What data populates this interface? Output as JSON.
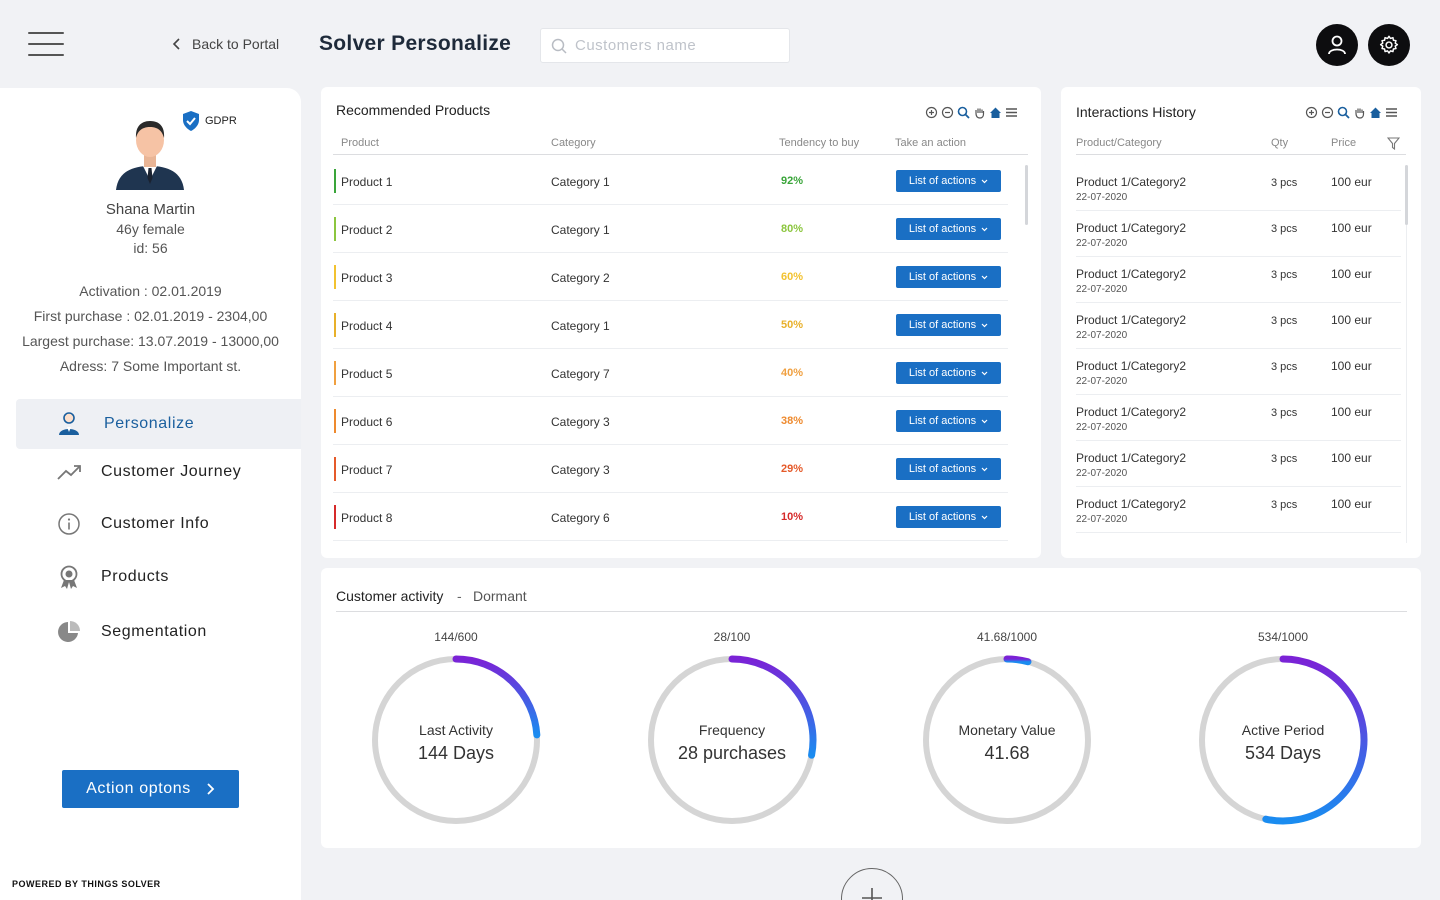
{
  "header": {
    "back_label": "Back to Portal",
    "app_title": "Solver Personalize",
    "search_placeholder": "Customers name"
  },
  "profile": {
    "gdpr_label": "GDPR",
    "name": "Shana Martin",
    "age_gender": "46y female",
    "id_text": "id: 56",
    "activation": "Activation : 02.01.2019",
    "first_purchase": "First purchase : 02.01.2019 -  2304,00",
    "largest_purchase": "Largest purchase: 13.07.2019 - 13000,00",
    "address": "Adress: 7 Some Important  st."
  },
  "nav": {
    "items": [
      {
        "label": "Personalize",
        "icon": "person-icon",
        "active": true
      },
      {
        "label": "Customer Journey",
        "icon": "trending-up-icon"
      },
      {
        "label": "Customer Info",
        "icon": "info-icon"
      },
      {
        "label": "Products",
        "icon": "award-icon"
      },
      {
        "label": "Segmentation",
        "icon": "pie-chart-icon"
      }
    ]
  },
  "action_button_label": "Action optons",
  "powered_by": "POWERED BY THINGS SOLVER",
  "recommended": {
    "title": "Recommended Products",
    "columns": [
      "Product",
      "Category",
      "Tendency to buy",
      "Take an action"
    ],
    "action_label": "List of actions",
    "rows": [
      {
        "product": "Product 1",
        "category": "Category 1",
        "tendency": "92%",
        "color": "#3aa53a"
      },
      {
        "product": "Product 2",
        "category": "Category 1",
        "tendency": "80%",
        "color": "#8cc63f"
      },
      {
        "product": "Product 3",
        "category": "Category 2",
        "tendency": "60%",
        "color": "#f2c230"
      },
      {
        "product": "Product 4",
        "category": "Category 1",
        "tendency": "50%",
        "color": "#e8b02a"
      },
      {
        "product": "Product 5",
        "category": "Category 7",
        "tendency": "40%",
        "color": "#f0a040"
      },
      {
        "product": "Product 6",
        "category": "Category 3",
        "tendency": "38%",
        "color": "#ee8a2e"
      },
      {
        "product": "Product 7",
        "category": "Category 3",
        "tendency": "29%",
        "color": "#e55a2a"
      },
      {
        "product": "Product 8",
        "category": "Category 6",
        "tendency": "10%",
        "color": "#d62a2a"
      }
    ]
  },
  "interactions": {
    "title": "Interactions History",
    "columns": [
      "Product/Category",
      "Qty",
      "Price"
    ],
    "rows": [
      {
        "item": "Product 1/Category2",
        "date": "22-07-2020",
        "qty": "3 pcs",
        "price": "100 eur"
      },
      {
        "item": "Product 1/Category2",
        "date": "22-07-2020",
        "qty": "3 pcs",
        "price": "100 eur"
      },
      {
        "item": "Product 1/Category2",
        "date": "22-07-2020",
        "qty": "3 pcs",
        "price": "100 eur"
      },
      {
        "item": "Product 1/Category2",
        "date": "22-07-2020",
        "qty": "3 pcs",
        "price": "100 eur"
      },
      {
        "item": "Product 1/Category2",
        "date": "22-07-2020",
        "qty": "3 pcs",
        "price": "100 eur"
      },
      {
        "item": "Product 1/Category2",
        "date": "22-07-2020",
        "qty": "3 pcs",
        "price": "100 eur"
      },
      {
        "item": "Product 1/Category2",
        "date": "22-07-2020",
        "qty": "3 pcs",
        "price": "100 eur"
      },
      {
        "item": "Product 1/Category2",
        "date": "22-07-2020",
        "qty": "3 pcs",
        "price": "100 eur"
      }
    ]
  },
  "activity": {
    "title": "Customer activity",
    "separator": "-",
    "status": "Dormant",
    "gauges": [
      {
        "top": "144/600",
        "label": "Last  Activity",
        "value": "144 Days",
        "fraction": 0.24
      },
      {
        "top": "28/100",
        "label": "Frequency",
        "value": "28 purchases",
        "fraction": 0.28
      },
      {
        "top": "41.68/1000",
        "label": "Monetary Value",
        "value": "41.68",
        "fraction": 0.04168
      },
      {
        "top": "534/1000",
        "label": "Active Period",
        "value": "534 Days",
        "fraction": 0.534
      }
    ]
  },
  "colors": {
    "accent": "#1a6fc4",
    "gauge_start": "#7b22d6",
    "gauge_end": "#1a8cf0",
    "gauge_track": "#d5d5d5"
  }
}
